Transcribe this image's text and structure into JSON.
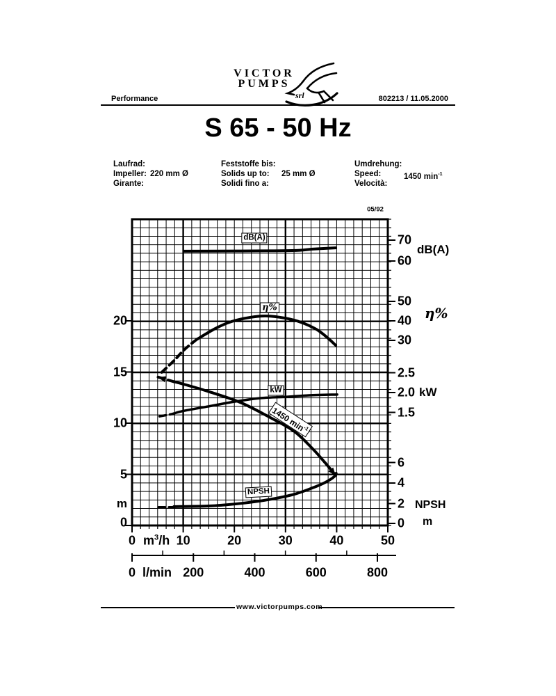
{
  "header": {
    "left": "Performance",
    "right": "802213 / 11.05.2000",
    "logo_line1": "VICTOR",
    "logo_line2": "PUMPS",
    "logo_srl": "srl"
  },
  "title": "S 65 - 50 Hz",
  "specs": {
    "impeller": {
      "labels": [
        "Laufrad:",
        "Impeller:",
        "Girante:"
      ],
      "value": "220 mm Ø"
    },
    "solids": {
      "labels": [
        "Feststoffe bis:",
        "Solids up to:",
        "Solidi fino a:"
      ],
      "value": "25 mm Ø"
    },
    "speed": {
      "labels": [
        "Umdrehung:",
        "Speed:",
        "Velocità:"
      ],
      "value": "1450",
      "unit": "min",
      "exp": "-1"
    }
  },
  "footer": "www.victorpumps.com",
  "chart_data": {
    "type": "line",
    "edition": "05/92",
    "x_axis_m3h": {
      "unit_parts": [
        "m",
        "3",
        "/h"
      ],
      "ticks": [
        "0",
        "10",
        "20",
        "30",
        "40",
        "50"
      ],
      "tick_values": [
        0,
        10,
        20,
        30,
        40,
        50
      ],
      "range": [
        0,
        50
      ]
    },
    "x_axis_lmin": {
      "unit": "l/min",
      "ticks": [
        "0",
        "200",
        "400",
        "600",
        "800"
      ],
      "tick_values": [
        0,
        200,
        400,
        600,
        800
      ],
      "range": [
        0,
        800
      ]
    },
    "y_axes": [
      {
        "name": "head",
        "side": "left",
        "unit": "m",
        "ticks": [
          "20",
          "15",
          "10",
          "5",
          "0"
        ],
        "tick_values": [
          20,
          15,
          10,
          5,
          0
        ],
        "scale": "m",
        "range": [
          0,
          24.5
        ]
      },
      {
        "name": "noise",
        "side": "right",
        "unit": "dB(A)",
        "ticks": [
          "70",
          "60"
        ],
        "tick_values": [
          70,
          60
        ],
        "scale": "db"
      },
      {
        "name": "efficiency",
        "side": "right",
        "unit": "η%",
        "ticks": [
          "50",
          "40",
          "30"
        ],
        "tick_values": [
          50,
          40,
          30
        ],
        "scale": "eta"
      },
      {
        "name": "power",
        "side": "right",
        "unit": "kW",
        "ticks": [
          "2.5",
          "2.0",
          "1.5"
        ],
        "tick_values": [
          2.5,
          2.0,
          1.5
        ],
        "scale": "kw"
      },
      {
        "name": "npsh",
        "side": "right",
        "unit": "NPSH",
        "unit2": "m",
        "ticks": [
          "6",
          "4",
          "2",
          "0"
        ],
        "tick_values": [
          6,
          4,
          2,
          0
        ],
        "scale": "npsh"
      }
    ],
    "series": [
      {
        "name": "head-curve-1450",
        "scale": "m",
        "box_text": "1450 min",
        "box_exp": "-1",
        "width": 4,
        "dashed": [
          [
            5.1,
            14.5
          ],
          [
            8.2,
            14.05
          ]
        ],
        "solid": [
          [
            8.2,
            14.05
          ],
          [
            9.8,
            13.85
          ],
          [
            14.9,
            13.1
          ],
          [
            21.3,
            12.0
          ],
          [
            27.2,
            10.5
          ],
          [
            31.7,
            9.2
          ],
          [
            35.3,
            7.5
          ],
          [
            37.8,
            6.1
          ],
          [
            39.8,
            4.9
          ]
        ],
        "arrow_start": true,
        "arrow_end": true
      },
      {
        "name": "efficiency-curve",
        "scale": "eta",
        "box_text": "η%",
        "width": 4,
        "dashed": [
          [
            5.8,
            13.6
          ],
          [
            8.2,
            19.6
          ],
          [
            10.3,
            25.4
          ],
          [
            12.6,
            30.4
          ]
        ],
        "solid": [
          [
            12.6,
            30.4
          ],
          [
            16.3,
            36.1
          ],
          [
            19.4,
            39.6
          ],
          [
            23.1,
            41.8
          ],
          [
            26.2,
            42.5
          ],
          [
            29.9,
            41.4
          ],
          [
            33.0,
            39.3
          ],
          [
            36.0,
            35.7
          ],
          [
            38.0,
            31.8
          ],
          [
            39.8,
            27.5
          ]
        ]
      },
      {
        "name": "power-curve",
        "scale": "kw",
        "box_text": "kW",
        "width": 3.5,
        "dashed": [
          [
            5.4,
            1.4
          ],
          [
            7.9,
            1.46
          ]
        ],
        "solid": [
          [
            7.9,
            1.46
          ],
          [
            9.8,
            1.53
          ],
          [
            14.9,
            1.65
          ],
          [
            20.0,
            1.77
          ],
          [
            25.1,
            1.86
          ],
          [
            29.9,
            1.89
          ],
          [
            34.6,
            1.93
          ],
          [
            40.1,
            1.95
          ]
        ]
      },
      {
        "name": "noise-curve",
        "scale": "db",
        "box_text": "dB(A)",
        "width": 4,
        "dashed": [],
        "solid": [
          [
            10.2,
            64.7
          ],
          [
            20.4,
            64.8
          ],
          [
            31.3,
            65.0
          ],
          [
            35.3,
            65.7
          ],
          [
            39.8,
            66.3
          ]
        ]
      },
      {
        "name": "npsh-curve",
        "scale": "npsh",
        "box_text": "NPSH",
        "width": 4,
        "dashed": [
          [
            5.2,
            1.63
          ],
          [
            8.2,
            1.63
          ]
        ],
        "solid": [
          [
            8.2,
            1.7
          ],
          [
            14.9,
            1.76
          ],
          [
            20.4,
            1.97
          ],
          [
            25.8,
            2.31
          ],
          [
            31.3,
            2.85
          ],
          [
            35.3,
            3.53
          ],
          [
            37.8,
            4.07
          ],
          [
            39.5,
            4.61
          ],
          [
            39.9,
            4.95
          ]
        ]
      }
    ]
  }
}
